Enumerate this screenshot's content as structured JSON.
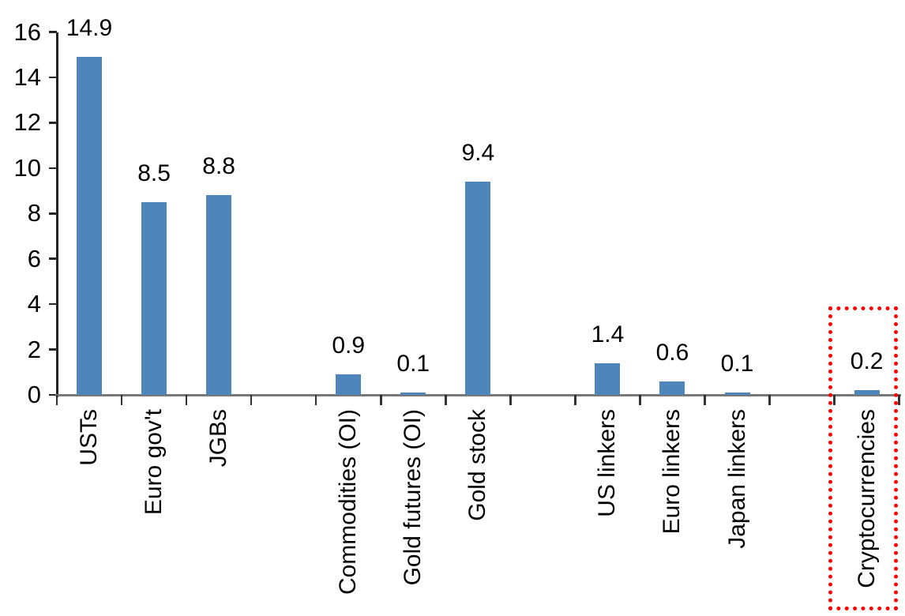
{
  "chart_data": {
    "type": "bar",
    "title": "",
    "xlabel": "",
    "ylabel": "",
    "categories": [
      "USTs",
      "Euro gov't",
      "JGBs",
      "Commodities (OI)",
      "Gold futures (OI)",
      "Gold stock",
      "US linkers",
      "Euro linkers",
      "Japan linkers",
      "Cryptocurrencies"
    ],
    "values": [
      14.9,
      8.5,
      8.8,
      0.9,
      0.1,
      9.4,
      1.4,
      0.6,
      0.1,
      0.2
    ],
    "value_labels": [
      "14.9",
      "8.5",
      "8.8",
      "0.9",
      "0.1",
      "9.4",
      "1.4",
      "0.6",
      "0.1",
      "0.2"
    ],
    "slot_indices": [
      0,
      1,
      2,
      4,
      5,
      6,
      8,
      9,
      10,
      12
    ],
    "total_slots": 13,
    "ylim": [
      0,
      16
    ],
    "ytick_step": 2,
    "ytick_labels": [
      "0",
      "2",
      "4",
      "6",
      "8",
      "10",
      "12",
      "14",
      "16"
    ],
    "grid": false,
    "legend": false,
    "bar_color_hex": "#4E86BC",
    "data_label_position": "outside-end",
    "category_label_rotation_deg": 90,
    "highlight": {
      "category": "Cryptocurrencies",
      "shape": "dotted-rectangle",
      "color_hex": "#FF0000"
    }
  }
}
